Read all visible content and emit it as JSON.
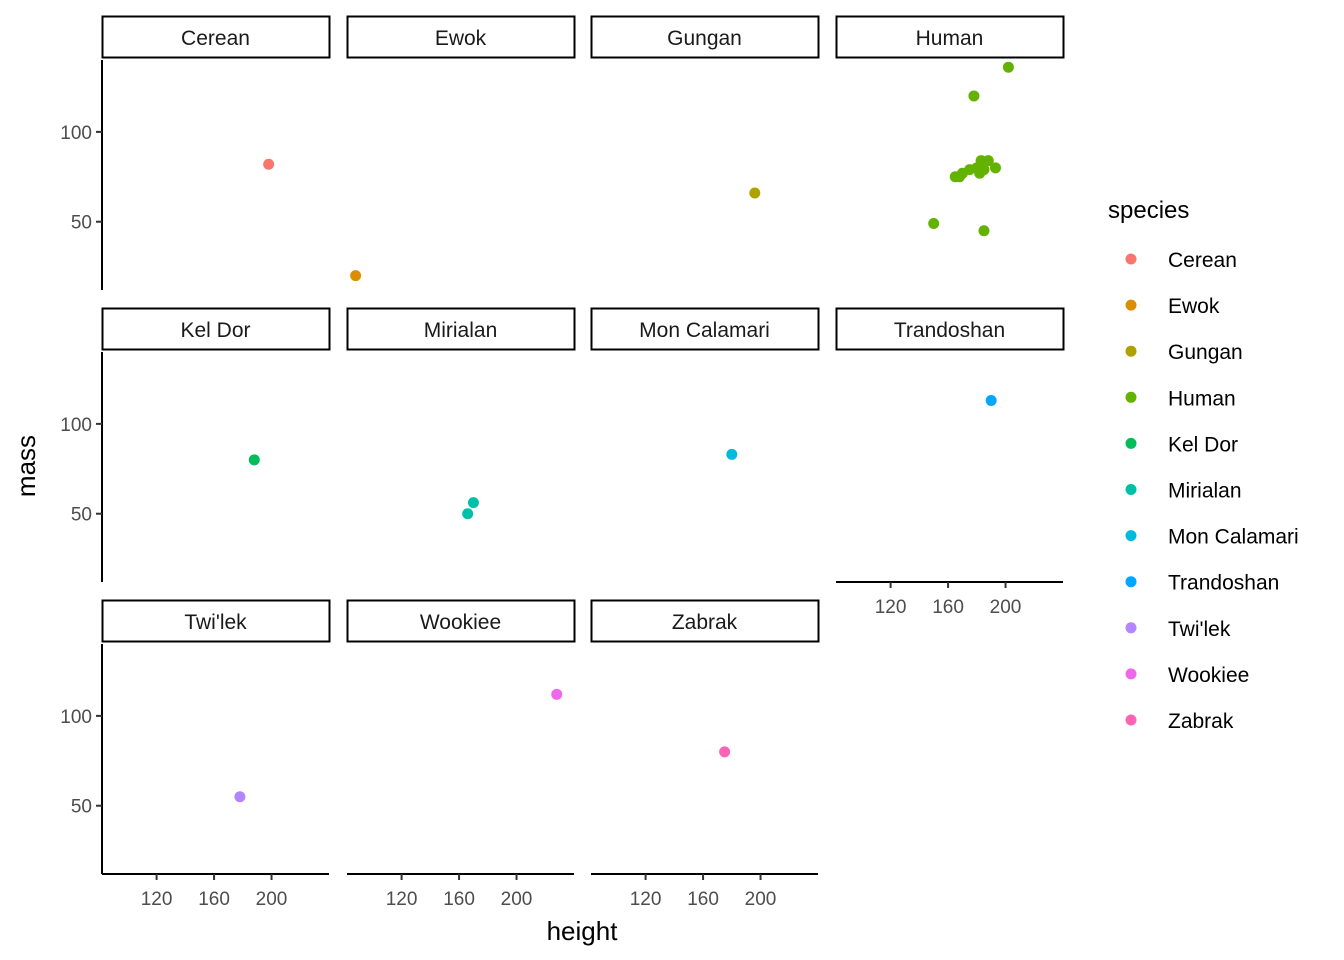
{
  "chart_data": {
    "type": "scatter",
    "facet_by": "species",
    "xlabel": "height",
    "ylabel": "mass",
    "xlim": [
      82,
      240
    ],
    "ylim": [
      12,
      140
    ],
    "x_ticks": [
      "120",
      "160",
      "200"
    ],
    "y_ticks": [
      "50",
      "100"
    ],
    "grid": false,
    "legend": {
      "title": "species",
      "placement": "right",
      "entries": [
        "Cerean",
        "Ewok",
        "Gungan",
        "Human",
        "Kel Dor",
        "Mirialan",
        "Mon Calamari",
        "Trandoshan",
        "Twi'lek",
        "Wookiee",
        "Zabrak"
      ]
    },
    "series": [
      {
        "name": "Cerean",
        "color": "#F8766D",
        "points": [
          [
            198,
            82
          ]
        ]
      },
      {
        "name": "Ewok",
        "color": "#DB8E00",
        "points": [
          [
            88,
            20
          ]
        ]
      },
      {
        "name": "Gungan",
        "color": "#AEA200",
        "points": [
          [
            196,
            66
          ]
        ]
      },
      {
        "name": "Human",
        "color": "#64B200",
        "points": [
          [
            202,
            136
          ],
          [
            178,
            120
          ],
          [
            183,
            84
          ],
          [
            188,
            84
          ],
          [
            182,
            79
          ],
          [
            170,
            77
          ],
          [
            175,
            79
          ],
          [
            180,
            80
          ],
          [
            185,
            79
          ],
          [
            193,
            80
          ],
          [
            168,
            75
          ],
          [
            165,
            75
          ],
          [
            182,
            77
          ],
          [
            150,
            49
          ],
          [
            185,
            45
          ]
        ]
      },
      {
        "name": "Kel Dor",
        "color": "#00BD5C",
        "points": [
          [
            188,
            80
          ]
        ]
      },
      {
        "name": "Mirialan",
        "color": "#00C1A7",
        "points": [
          [
            166,
            50
          ],
          [
            170,
            56.2
          ]
        ]
      },
      {
        "name": "Mon Calamari",
        "color": "#00BADE",
        "points": [
          [
            180,
            83
          ]
        ]
      },
      {
        "name": "Trandoshan",
        "color": "#00A6FF",
        "points": [
          [
            190,
            113
          ]
        ]
      },
      {
        "name": "Twi'lek",
        "color": "#B385FF",
        "points": [
          [
            178,
            55
          ]
        ]
      },
      {
        "name": "Wookiee",
        "color": "#EF67EB",
        "points": [
          [
            228,
            112
          ]
        ]
      },
      {
        "name": "Zabrak",
        "color": "#FF63B6",
        "points": [
          [
            175,
            80
          ]
        ]
      }
    ]
  }
}
